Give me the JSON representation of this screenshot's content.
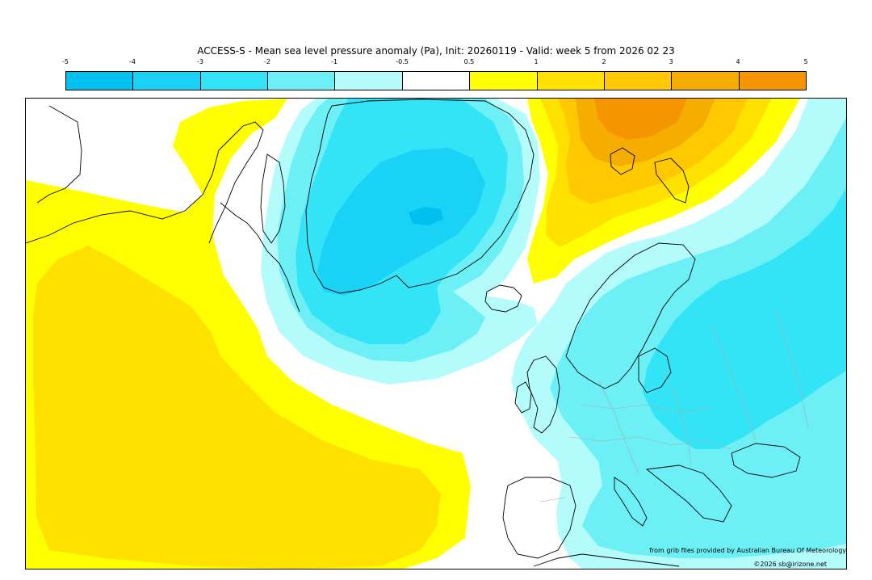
{
  "title": "ACCESS-S - Mean sea level pressure anomaly (Pa), Init: 20260119 - Valid: week 5 from 2026 02 23",
  "colorbar": {
    "tick_labels": [
      "-5",
      "-4",
      "-3",
      "-2",
      "-1",
      "-0.5",
      "0.5",
      "1",
      "2",
      "3",
      "4",
      "5"
    ],
    "colors": [
      "#00c0f0",
      "#1ad2f5",
      "#32e4f6",
      "#6cf0f6",
      "#b4fbfc",
      "#ffffff",
      "#ffff00",
      "#ffe100",
      "#ffc800",
      "#f5ad00",
      "#f59600"
    ]
  },
  "map": {
    "region": "North Atlantic and Europe",
    "fill_colors": {
      "neg_1": "#b4fbfc",
      "neg_2": "#6cf0f6",
      "neg_3": "#32e4f6",
      "neg_4": "#1ad2f5",
      "pos_1": "#ffff00",
      "pos_2": "#ffe100",
      "pos_3": "#ffc800",
      "pos_4": "#f5ad00",
      "pos_5": "#f59600",
      "coast": "#000000",
      "border": "#aaaaaa"
    }
  },
  "credits": {
    "line1": "from grib files provided by Australian Bureau Of Meteorology",
    "line2": "©2026 sb@irizone.net"
  }
}
